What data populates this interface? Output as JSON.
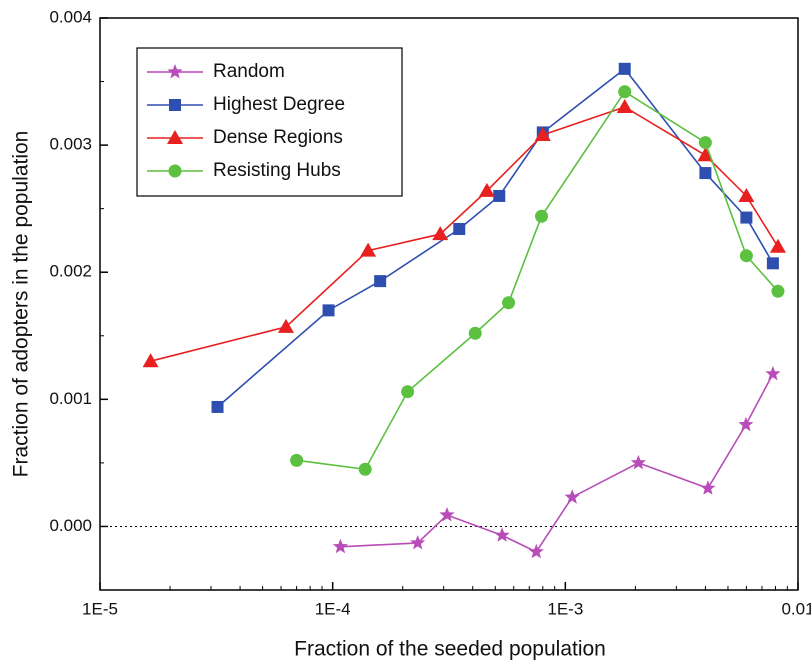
{
  "chart_data": {
    "type": "line",
    "x_label": "Fraction of the seeded population",
    "y_label": "Fraction of adopters in the population",
    "xscale": "log",
    "xlim": [
      1e-05,
      0.01
    ],
    "xticks": [
      {
        "value": 1e-05,
        "label": "1E-5"
      },
      {
        "value": 0.0001,
        "label": "1E-4"
      },
      {
        "value": 0.001,
        "label": "1E-3"
      },
      {
        "value": 0.01,
        "label": "0.01"
      }
    ],
    "ylim": [
      -0.0005,
      0.004
    ],
    "yticks": [
      {
        "value": 0,
        "label": "0.000"
      },
      {
        "value": 0.001,
        "label": "0.001"
      },
      {
        "value": 0.002,
        "label": "0.002"
      },
      {
        "value": 0.003,
        "label": "0.003"
      },
      {
        "value": 0.004,
        "label": "0.004"
      }
    ],
    "zero_line": true,
    "legend": "upper left",
    "series": [
      {
        "name": "Random",
        "color": "#b84cb8",
        "marker": "star",
        "x": [
          0.000108,
          0.000232,
          0.00031,
          0.000535,
          0.00075,
          0.00107,
          0.00206,
          0.0041,
          0.00597,
          0.0078
        ],
        "values": [
          -0.00016,
          -0.00013,
          9e-05,
          -7e-05,
          -0.0002,
          0.00023,
          0.0005,
          0.0003,
          0.0008,
          0.0012
        ]
      },
      {
        "name": "Highest Degree",
        "color": "#2f4fb0",
        "marker": "square",
        "x": [
          3.2e-05,
          9.6e-05,
          0.00016,
          0.00035,
          0.00052,
          0.0008,
          0.0018,
          0.004,
          0.006,
          0.0078
        ],
        "values": [
          0.00094,
          0.0017,
          0.00193,
          0.00234,
          0.0026,
          0.0031,
          0.0036,
          0.00278,
          0.00243,
          0.00207
        ]
      },
      {
        "name": "Dense Regions",
        "color": "#e82020",
        "marker": "triangle",
        "x": [
          1.65e-05,
          6.3e-05,
          0.000142,
          0.00029,
          0.00046,
          0.0008,
          0.0018,
          0.004,
          0.006,
          0.0082
        ],
        "values": [
          0.0013,
          0.00157,
          0.00217,
          0.0023,
          0.00264,
          0.00308,
          0.0033,
          0.00292,
          0.0026,
          0.0022
        ]
      },
      {
        "name": "Resisting Hubs",
        "color": "#5cc040",
        "marker": "circle",
        "x": [
          7e-05,
          0.000138,
          0.00021,
          0.00041,
          0.00057,
          0.00079,
          0.0018,
          0.004,
          0.006,
          0.0082
        ],
        "values": [
          0.00052,
          0.00045,
          0.00106,
          0.00152,
          0.00176,
          0.00244,
          0.00342,
          0.00302,
          0.00213,
          0.00185
        ]
      }
    ]
  }
}
